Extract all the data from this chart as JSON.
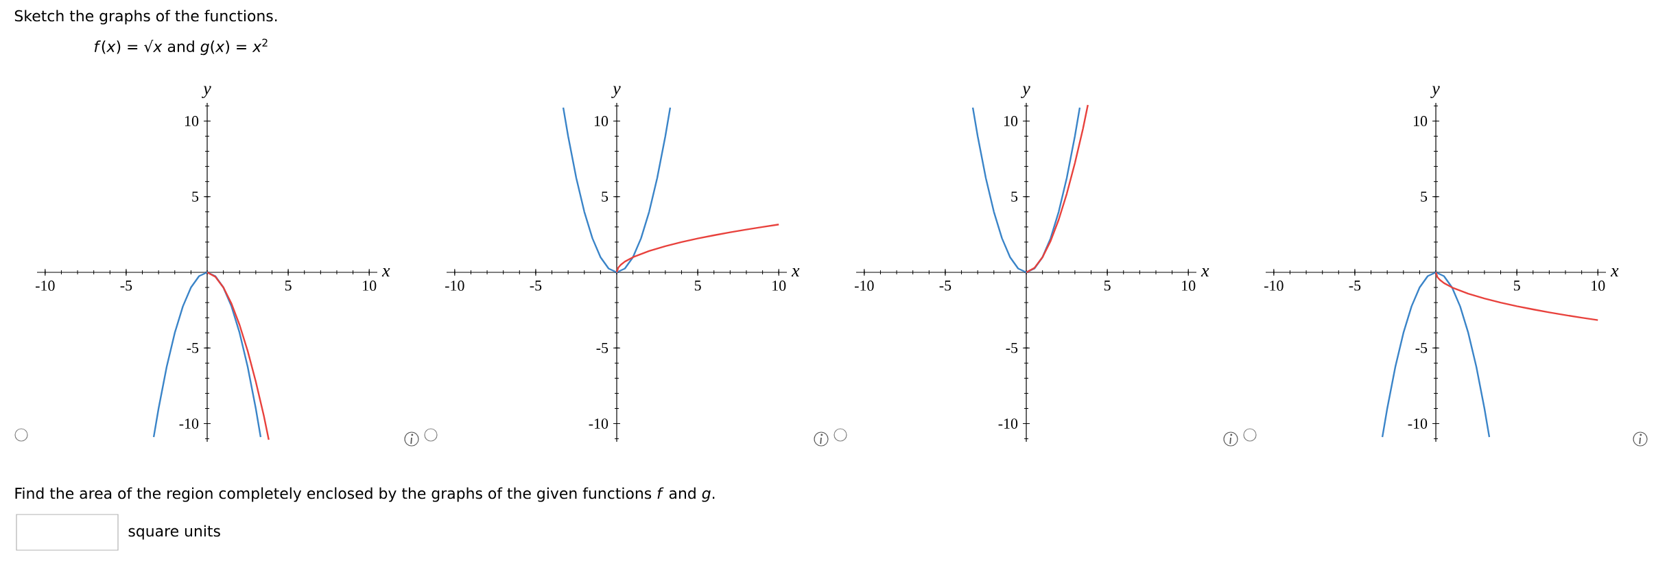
{
  "chart_data": [
    {
      "type": "line",
      "title": "Sketch the graphs of the functions.",
      "subtitle": "*f*(*x*) = √*x* and *g*(*x*) = *x*$^{2}$",
      "xlabel": "x",
      "ylabel": "y",
      "xlim": [
        -10.5,
        10.5
      ],
      "ylim": [
        -11.2,
        11.2
      ],
      "xticks": [
        -10,
        -5,
        5,
        10
      ],
      "yticks": [
        -10,
        -5,
        5,
        10
      ],
      "marker": "none",
      "series": [
        {
          "color": "#3a84c8",
          "x": [
            -3.3,
            -3,
            -2.5,
            -2,
            -1.5,
            -1,
            -0.5,
            0,
            0.5,
            1,
            1.5,
            2,
            2.5,
            3,
            3.3
          ],
          "values": [
            -10.89,
            -9,
            -6.25,
            -4,
            -2.25,
            -1,
            -0.25,
            0,
            -0.25,
            -1,
            -2.25,
            -4,
            -6.25,
            -9,
            -10.89
          ]
        },
        {
          "color": "#e8413c",
          "x": [
            0,
            0.5,
            1,
            1.5,
            2,
            2.5,
            3,
            3.5,
            3.8
          ],
          "values": [
            0,
            -0.29,
            -1,
            -2.07,
            -3.48,
            -5.2,
            -7.22,
            -9.5,
            -11.06
          ]
        }
      ]
    },
    {
      "type": "line",
      "xlabel": "x",
      "ylabel": "y",
      "xlim": [
        -10.5,
        10.5
      ],
      "ylim": [
        -11.2,
        11.2
      ],
      "xticks": [
        -10,
        -5,
        5,
        10
      ],
      "yticks": [
        -10,
        -5,
        5,
        10
      ],
      "marker": "none",
      "series": [
        {
          "color": "#3a84c8",
          "x": [
            -3.3,
            -3,
            -2.5,
            -2,
            -1.5,
            -1,
            -0.5,
            0,
            0.5,
            1,
            1.5,
            2,
            2.5,
            3,
            3.3
          ],
          "values": [
            10.89,
            9,
            6.25,
            4,
            2.25,
            1,
            0.25,
            0,
            0.25,
            1,
            2.25,
            4,
            6.25,
            9,
            10.89
          ]
        },
        {
          "color": "#e8413c",
          "x": [
            0,
            0.1,
            0.25,
            0.5,
            1,
            2,
            3,
            4,
            5,
            6,
            7,
            8,
            9,
            10
          ],
          "values": [
            0,
            0.32,
            0.5,
            0.71,
            1,
            1.41,
            1.73,
            2,
            2.24,
            2.45,
            2.65,
            2.83,
            3,
            3.16
          ]
        }
      ]
    },
    {
      "type": "line",
      "xlabel": "x",
      "ylabel": "y",
      "xlim": [
        -10.5,
        10.5
      ],
      "ylim": [
        -11.2,
        11.2
      ],
      "xticks": [
        -10,
        -5,
        5,
        10
      ],
      "yticks": [
        -10,
        -5,
        5,
        10
      ],
      "marker": "none",
      "series": [
        {
          "color": "#3a84c8",
          "x": [
            -3.3,
            -3,
            -2.5,
            -2,
            -1.5,
            -1,
            -0.5,
            0,
            0.5,
            1,
            1.5,
            2,
            2.5,
            3,
            3.3
          ],
          "values": [
            10.89,
            9,
            6.25,
            4,
            2.25,
            1,
            0.25,
            0,
            0.25,
            1,
            2.25,
            4,
            6.25,
            9,
            10.89
          ]
        },
        {
          "color": "#e8413c",
          "x": [
            0,
            0.5,
            1,
            1.5,
            2,
            2.5,
            3,
            3.5,
            3.8
          ],
          "values": [
            0,
            0.29,
            1,
            2.07,
            3.48,
            5.2,
            7.22,
            9.5,
            11.06
          ]
        }
      ]
    },
    {
      "type": "line",
      "xlabel": "x",
      "ylabel": "y",
      "xlim": [
        -10.5,
        10.5
      ],
      "ylim": [
        -11.2,
        11.2
      ],
      "xticks": [
        -10,
        -5,
        5,
        10
      ],
      "yticks": [
        -10,
        -5,
        5,
        10
      ],
      "marker": "none",
      "annotations": [
        "Find the area of the region completely enclosed by the graphs of the given functions *f* and *g*.",
        "square units"
      ],
      "series": [
        {
          "color": "#3a84c8",
          "x": [
            -3.3,
            -3,
            -2.5,
            -2,
            -1.5,
            -1,
            -0.5,
            0,
            0.5,
            1,
            1.5,
            2,
            2.5,
            3,
            3.3
          ],
          "values": [
            -10.89,
            -9,
            -6.25,
            -4,
            -2.25,
            -1,
            -0.25,
            0,
            -0.25,
            -1,
            -2.25,
            -4,
            -6.25,
            -9,
            -10.89
          ]
        },
        {
          "color": "#e8413c",
          "x": [
            0,
            0.1,
            0.25,
            0.5,
            1,
            2,
            3,
            4,
            5,
            6,
            7,
            8,
            9,
            10
          ],
          "values": [
            0,
            -0.32,
            -0.5,
            -0.71,
            -1,
            -1.41,
            -1.73,
            -2,
            -2.24,
            -2.45,
            -2.65,
            -2.83,
            -3,
            -3.16
          ]
        }
      ]
    }
  ]
}
